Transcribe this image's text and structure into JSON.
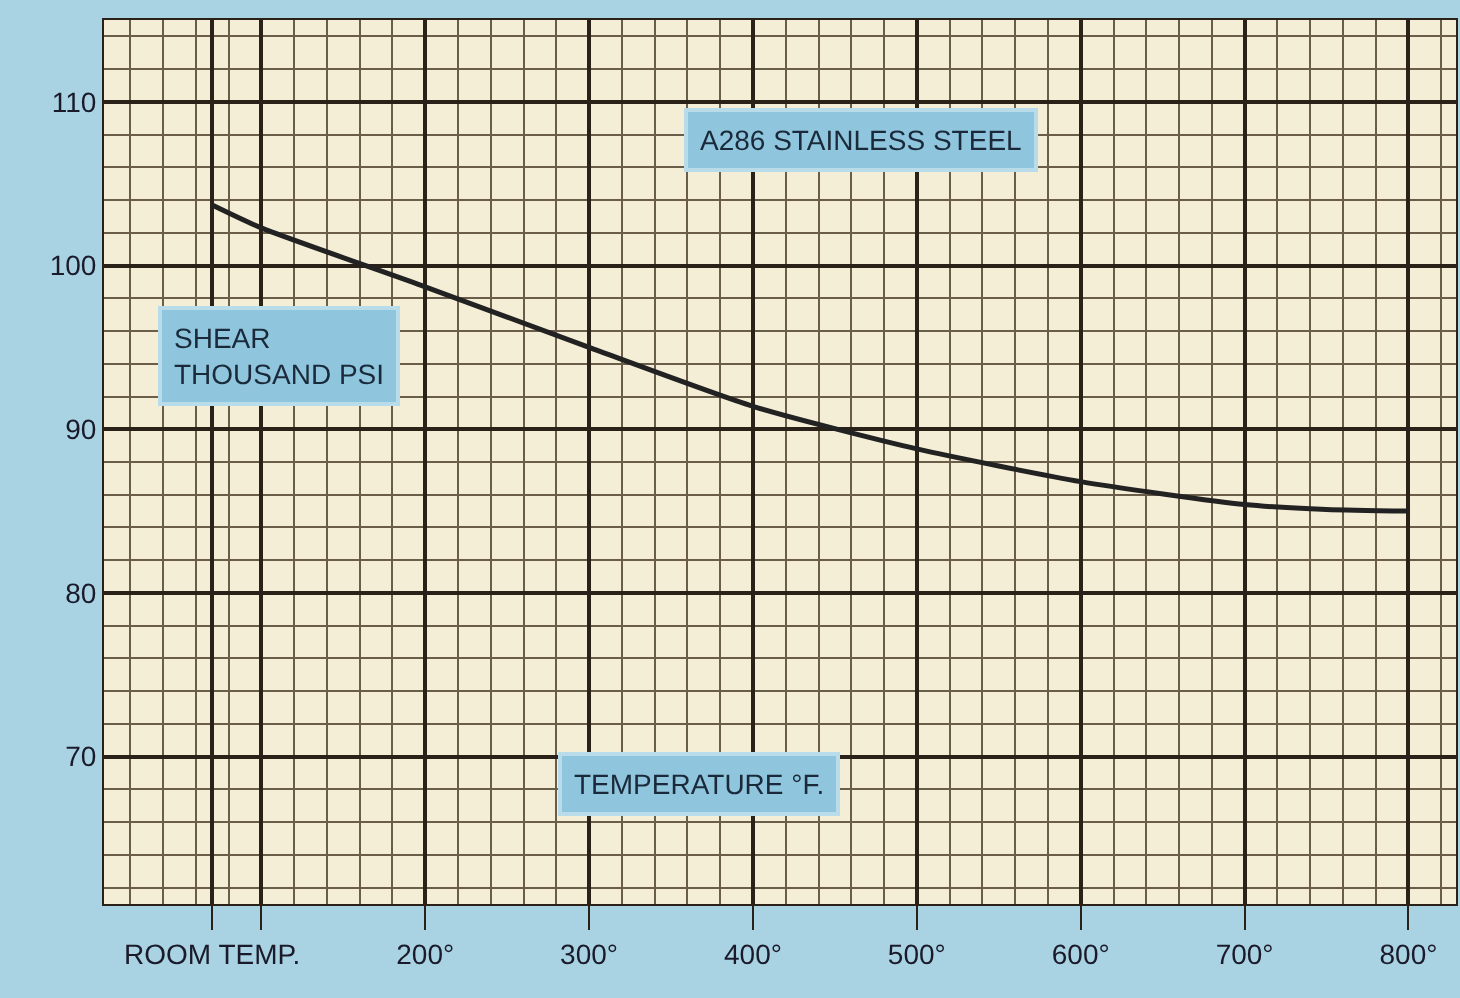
{
  "chart_data": {
    "type": "line",
    "xlabel": "TEMPERATURE °F.",
    "ylabel": "SHEAR\nTHOUSAND PSI",
    "annotations": [
      "A286 STAINLESS STEEL"
    ],
    "x": [
      70,
      100,
      200,
      300,
      400,
      500,
      600,
      700,
      750,
      800
    ],
    "series": [
      {
        "color": "#222222",
        "values": [
          103.7,
          102.3,
          98.7,
          95.0,
          91.4,
          88.8,
          86.8,
          85.4,
          85.1,
          85.0
        ]
      }
    ],
    "xlim": [
      4,
      829
    ],
    "ylim": [
      61,
      115
    ],
    "xticks": [
      {
        "value": 70,
        "label": "ROOM TEMP."
      },
      {
        "value": 100,
        "label": null
      },
      {
        "value": 200,
        "label": "200°"
      },
      {
        "value": 300,
        "label": "300°"
      },
      {
        "value": 400,
        "label": "400°"
      },
      {
        "value": 500,
        "label": "500°"
      },
      {
        "value": 600,
        "label": "600°"
      },
      {
        "value": 700,
        "label": "700°"
      },
      {
        "value": 800,
        "label": "800°"
      }
    ],
    "yticks": [
      70,
      80,
      90,
      100,
      110
    ],
    "grid": true,
    "marker": "none",
    "line_style": "solid",
    "legend": false
  }
}
